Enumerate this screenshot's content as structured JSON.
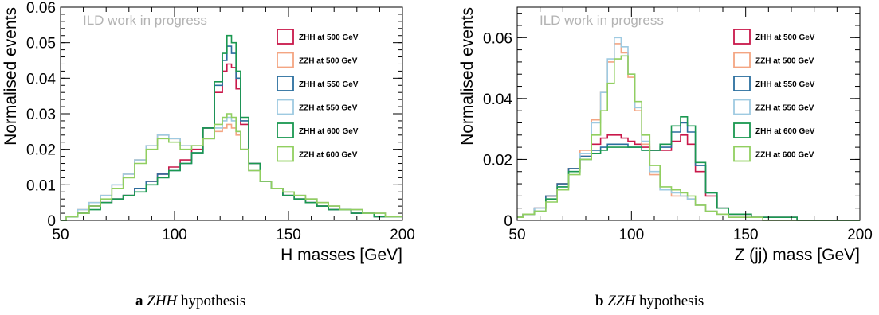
{
  "captions": [
    {
      "letter": "a",
      "math": "ZHH",
      "text": "hypothesis"
    },
    {
      "letter": "b",
      "math": "ZZH",
      "text": "hypothesis"
    }
  ],
  "chart_data": [
    {
      "type": "line",
      "subtype": "step-histogram",
      "annotation": "ILD work in progress",
      "xlabel": "H masses [GeV]",
      "ylabel": "Normalised events",
      "xlim": [
        50,
        200
      ],
      "ylim": [
        0,
        0.06
      ],
      "xticks": [
        "50",
        "100",
        "150",
        "200"
      ],
      "yticks": [
        "0",
        "0.01",
        "0.02",
        "0.03",
        "0.04",
        "0.05",
        "0.06"
      ],
      "grid": false,
      "legend_position": "top-right",
      "x": [
        50,
        55,
        60,
        65,
        70,
        75,
        80,
        85,
        90,
        95,
        100,
        105,
        110,
        115,
        120,
        122,
        124,
        126,
        128,
        130,
        135,
        140,
        145,
        150,
        155,
        160,
        165,
        170,
        175,
        180,
        185,
        190,
        195,
        200
      ],
      "series": [
        {
          "name": "ZHH at 500 GeV",
          "color": "#c9184a",
          "values": [
            0.0,
            0.001,
            0.002,
            0.004,
            0.005,
            0.006,
            0.007,
            0.009,
            0.011,
            0.013,
            0.015,
            0.017,
            0.02,
            0.026,
            0.036,
            0.042,
            0.044,
            0.043,
            0.037,
            0.027,
            0.016,
            0.011,
            0.009,
            0.007,
            0.006,
            0.005,
            0.004,
            0.003,
            0.003,
            0.002,
            0.002,
            0.001,
            0.001,
            0.001
          ]
        },
        {
          "name": "ZZH at 500 GeV",
          "color": "#f4a582",
          "values": [
            0.0,
            0.001,
            0.003,
            0.005,
            0.007,
            0.01,
            0.013,
            0.017,
            0.021,
            0.024,
            0.023,
            0.021,
            0.021,
            0.023,
            0.025,
            0.026,
            0.027,
            0.026,
            0.024,
            0.02,
            0.014,
            0.011,
            0.009,
            0.008,
            0.007,
            0.006,
            0.005,
            0.004,
            0.003,
            0.003,
            0.002,
            0.002,
            0.001,
            0.001
          ]
        },
        {
          "name": "ZHH at 550 GeV",
          "color": "#2b6f9e",
          "values": [
            0.0,
            0.001,
            0.002,
            0.004,
            0.005,
            0.006,
            0.007,
            0.009,
            0.011,
            0.013,
            0.014,
            0.016,
            0.019,
            0.026,
            0.038,
            0.045,
            0.049,
            0.047,
            0.04,
            0.028,
            0.016,
            0.011,
            0.009,
            0.007,
            0.006,
            0.005,
            0.004,
            0.003,
            0.003,
            0.002,
            0.002,
            0.001,
            0.001,
            0.001
          ]
        },
        {
          "name": "ZZH at 550 GeV",
          "color": "#9ecae1",
          "values": [
            0.0,
            0.001,
            0.003,
            0.005,
            0.007,
            0.01,
            0.013,
            0.017,
            0.021,
            0.024,
            0.023,
            0.021,
            0.021,
            0.023,
            0.026,
            0.028,
            0.029,
            0.028,
            0.025,
            0.02,
            0.014,
            0.011,
            0.009,
            0.008,
            0.007,
            0.006,
            0.005,
            0.004,
            0.003,
            0.003,
            0.002,
            0.002,
            0.001,
            0.001
          ]
        },
        {
          "name": "ZHH at 600 GeV",
          "color": "#1a9850",
          "values": [
            0.0,
            0.001,
            0.002,
            0.003,
            0.005,
            0.006,
            0.007,
            0.008,
            0.01,
            0.012,
            0.014,
            0.016,
            0.019,
            0.026,
            0.039,
            0.047,
            0.052,
            0.05,
            0.042,
            0.029,
            0.016,
            0.011,
            0.009,
            0.007,
            0.006,
            0.005,
            0.004,
            0.003,
            0.003,
            0.002,
            0.002,
            0.001,
            0.001,
            0.001
          ]
        },
        {
          "name": "ZZH at 600 GeV",
          "color": "#91cf60",
          "values": [
            0.0,
            0.001,
            0.002,
            0.004,
            0.006,
            0.009,
            0.012,
            0.016,
            0.02,
            0.023,
            0.022,
            0.02,
            0.021,
            0.023,
            0.027,
            0.029,
            0.03,
            0.029,
            0.025,
            0.02,
            0.014,
            0.011,
            0.009,
            0.008,
            0.007,
            0.006,
            0.005,
            0.004,
            0.003,
            0.003,
            0.002,
            0.002,
            0.001,
            0.001
          ]
        }
      ]
    },
    {
      "type": "line",
      "subtype": "step-histogram",
      "annotation": "ILD work in progress",
      "xlabel": "Z (jj) mass [GeV]",
      "ylabel": "Normalised events",
      "xlim": [
        50,
        200
      ],
      "ylim": [
        0,
        0.07
      ],
      "xticks": [
        "50",
        "100",
        "150",
        "200"
      ],
      "yticks": [
        "0",
        "0.02",
        "0.04",
        "0.06"
      ],
      "grid": false,
      "legend_position": "top-right",
      "x": [
        50,
        55,
        60,
        65,
        70,
        75,
        80,
        85,
        88,
        91,
        94,
        97,
        100,
        103,
        106,
        110,
        115,
        120,
        123,
        126,
        130,
        135,
        140,
        145,
        150,
        155,
        160,
        165,
        170,
        175,
        180,
        185,
        190,
        195,
        200
      ],
      "series": [
        {
          "name": "ZHH at 500 GeV",
          "color": "#c9184a",
          "values": [
            0.001,
            0.002,
            0.004,
            0.008,
            0.012,
            0.017,
            0.021,
            0.025,
            0.027,
            0.028,
            0.028,
            0.027,
            0.026,
            0.025,
            0.024,
            0.023,
            0.023,
            0.026,
            0.028,
            0.025,
            0.016,
            0.008,
            0.004,
            0.002,
            0.002,
            0.001,
            0.001,
            0.001,
            0.001,
            0.0,
            0.0,
            0.0,
            0.0,
            0.0,
            0.0
          ]
        },
        {
          "name": "ZZH at 500 GeV",
          "color": "#f4a582",
          "values": [
            0.001,
            0.002,
            0.004,
            0.008,
            0.012,
            0.017,
            0.023,
            0.033,
            0.042,
            0.052,
            0.058,
            0.055,
            0.047,
            0.036,
            0.025,
            0.015,
            0.01,
            0.008,
            0.008,
            0.007,
            0.005,
            0.003,
            0.002,
            0.001,
            0.001,
            0.001,
            0.0,
            0.0,
            0.0,
            0.0,
            0.0,
            0.0,
            0.0,
            0.0,
            0.0
          ]
        },
        {
          "name": "ZHH at 550 GeV",
          "color": "#2b6f9e",
          "values": [
            0.001,
            0.002,
            0.004,
            0.008,
            0.012,
            0.017,
            0.021,
            0.023,
            0.024,
            0.025,
            0.025,
            0.025,
            0.024,
            0.024,
            0.023,
            0.023,
            0.024,
            0.029,
            0.032,
            0.029,
            0.018,
            0.009,
            0.004,
            0.002,
            0.002,
            0.001,
            0.001,
            0.001,
            0.001,
            0.0,
            0.0,
            0.0,
            0.0,
            0.0,
            0.0
          ]
        },
        {
          "name": "ZZH at 550 GeV",
          "color": "#9ecae1",
          "values": [
            0.001,
            0.002,
            0.004,
            0.007,
            0.011,
            0.016,
            0.022,
            0.032,
            0.042,
            0.053,
            0.06,
            0.057,
            0.048,
            0.037,
            0.026,
            0.016,
            0.01,
            0.009,
            0.008,
            0.007,
            0.005,
            0.003,
            0.002,
            0.001,
            0.001,
            0.001,
            0.0,
            0.0,
            0.0,
            0.0,
            0.0,
            0.0,
            0.0,
            0.0,
            0.0
          ]
        },
        {
          "name": "ZHH at 600 GeV",
          "color": "#1a9850",
          "values": [
            0.001,
            0.002,
            0.003,
            0.007,
            0.011,
            0.016,
            0.02,
            0.022,
            0.023,
            0.024,
            0.024,
            0.024,
            0.024,
            0.024,
            0.023,
            0.023,
            0.025,
            0.031,
            0.034,
            0.031,
            0.019,
            0.009,
            0.004,
            0.002,
            0.002,
            0.001,
            0.001,
            0.001,
            0.001,
            0.0,
            0.0,
            0.0,
            0.0,
            0.0,
            0.0
          ]
        },
        {
          "name": "ZZH at 600 GeV",
          "color": "#91cf60",
          "values": [
            0.001,
            0.002,
            0.003,
            0.006,
            0.01,
            0.015,
            0.02,
            0.028,
            0.036,
            0.045,
            0.053,
            0.054,
            0.048,
            0.039,
            0.028,
            0.018,
            0.011,
            0.01,
            0.009,
            0.008,
            0.005,
            0.003,
            0.002,
            0.001,
            0.001,
            0.001,
            0.0,
            0.0,
            0.0,
            0.0,
            0.0,
            0.0,
            0.0,
            0.0,
            0.0
          ]
        }
      ]
    }
  ]
}
